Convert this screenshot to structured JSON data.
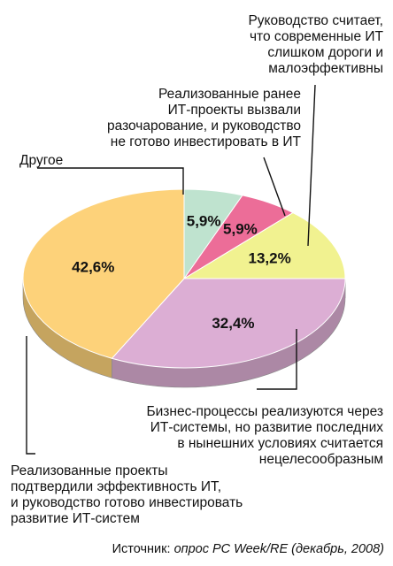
{
  "chart_data": {
    "type": "pie",
    "slices": [
      {
        "label_lines": [
          "Другое"
        ],
        "value": 5.9,
        "value_label": "5,9%",
        "color": "#bfe3cf"
      },
      {
        "label_lines": [
          "Реализованные ранее",
          "ИТ-проекты вызвали",
          "разочарование, и руководство",
          "не готово инвестировать в ИТ"
        ],
        "value": 5.9,
        "value_label": "5,9%",
        "color": "#ec6d98"
      },
      {
        "label_lines": [
          "Руководство считает,",
          "что современные ИТ",
          "слишком дороги и",
          "малоэффективны"
        ],
        "value": 13.2,
        "value_label": "13,2%",
        "color": "#f1f290"
      },
      {
        "label_lines": [
          "Бизнес-процессы реализуются через",
          "ИТ-системы, но развитие последних",
          "в нынешних условиях считается",
          "нецелесообразным"
        ],
        "value": 32.4,
        "value_label": "32,4%",
        "color": "#dcaed4"
      },
      {
        "label_lines": [
          "Реализованные проекты",
          "подтвердили эффективность ИТ,",
          "и руководство готово инвестировать",
          "развитие ИТ-систем"
        ],
        "value": 42.6,
        "value_label": "42,6%",
        "color": "#fdd27a"
      }
    ],
    "source_prefix": "Источник: ",
    "source_text": "опрос PC Week/RE (декабрь, 2008)"
  }
}
